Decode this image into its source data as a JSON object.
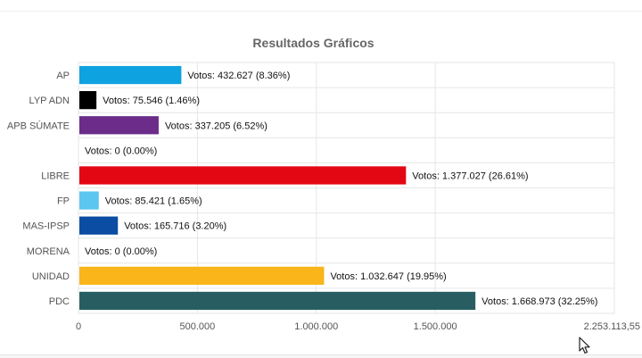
{
  "chart_data": {
    "type": "bar",
    "orientation": "horizontal",
    "title": "Resultados Gráficos",
    "xlabel": "",
    "ylabel": "",
    "categories": [
      "AP",
      "LYP ADN",
      "APB SÚMATE",
      "",
      "LIBRE",
      "FP",
      "MAS-IPSP",
      "MORENA",
      "UNIDAD",
      "PDC"
    ],
    "values": [
      432627,
      75546,
      337205,
      0,
      1377027,
      85421,
      165716,
      0,
      1032647,
      1668973
    ],
    "data_labels": [
      "Votos: 432.627 (8.36%)",
      "Votos: 75.546 (1.46%)",
      "Votos: 337.205 (6.52%)",
      "Votos: 0 (0.00%)",
      "Votos: 1.377.027 (26.61%)",
      "Votos: 85.421 (1.65%)",
      "Votos: 165.716 (3.20%)",
      "Votos: 0 (0.00%)",
      "Votos: 1.032.647 (19.95%)",
      "Votos: 1.668.973 (32.25%)"
    ],
    "colors": [
      "#0ea2e0",
      "#000000",
      "#6b2c8a",
      "#bbbbbb",
      "#e30613",
      "#5bc6f0",
      "#0a4da3",
      "#999999",
      "#f9b51a",
      "#285e62"
    ],
    "xlim": [
      0,
      2253113.55
    ],
    "ticks": [
      0,
      500000,
      1000000,
      1500000,
      2253113.55
    ],
    "tick_labels": [
      "0",
      "500.000",
      "1.000.000",
      "1.500.000",
      "2.253.113,55"
    ],
    "grid": true,
    "legend": "none"
  },
  "colors": {
    "title": "#666666",
    "axis_text": "#555555",
    "label_text": "#111111",
    "grid": "#e6e6e6"
  }
}
